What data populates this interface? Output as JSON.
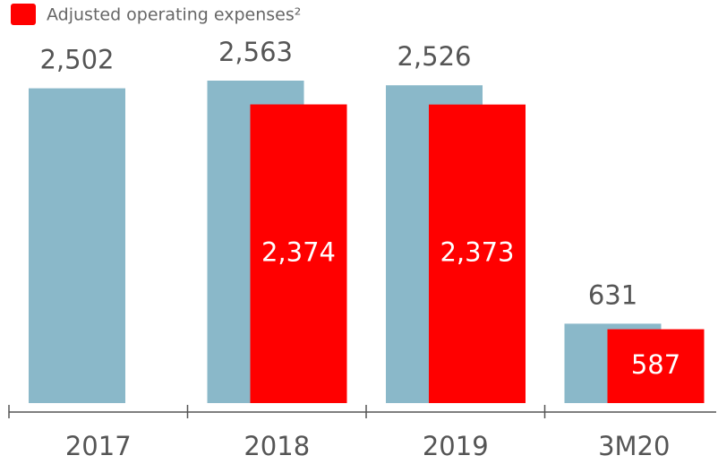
{
  "chart_data": {
    "type": "bar",
    "categories": [
      "2017",
      "2018",
      "2019",
      "3M20"
    ],
    "series": [
      {
        "color": "#8ab8c9",
        "values": [
          2502,
          2563,
          2526,
          631
        ],
        "value_labels": [
          "2,502",
          "2,563",
          "2,526",
          "631"
        ]
      },
      {
        "name": "Adjusted operating expenses²",
        "color": "#ff0000",
        "values": [
          null,
          2374,
          2373,
          587
        ],
        "value_labels": [
          null,
          "2,374",
          "2,373",
          "587"
        ]
      }
    ]
  }
}
